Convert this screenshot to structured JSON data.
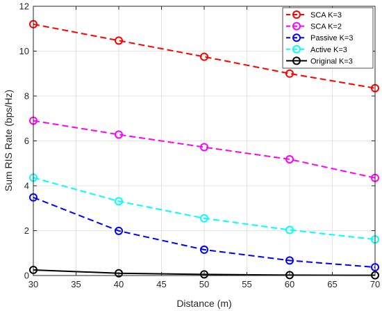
{
  "chart_data": {
    "type": "line",
    "title": "",
    "xlabel": "Distance (m)",
    "ylabel": "Sum RIS Rate (bps/Hz)",
    "x": [
      30,
      40,
      50,
      60,
      70
    ],
    "xlim": [
      30,
      70
    ],
    "ylim": [
      0,
      12
    ],
    "xticks": [
      30,
      35,
      40,
      45,
      50,
      55,
      60,
      65,
      70
    ],
    "yticks": [
      0,
      2,
      4,
      6,
      8,
      10,
      12
    ],
    "grid": true,
    "legend_position": "top-right",
    "series": [
      {
        "name": "SCA K=3",
        "values": [
          11.2,
          10.47,
          9.75,
          9.0,
          8.35
        ],
        "color": "#ff0000",
        "dash": "dashed",
        "marker": "circle"
      },
      {
        "name": "SCA K=2",
        "values": [
          6.9,
          6.28,
          5.72,
          5.18,
          4.35
        ],
        "color": "#ff00ff",
        "dash": "dashed",
        "marker": "circle"
      },
      {
        "name": "Passive K=3",
        "values": [
          3.48,
          1.99,
          1.15,
          0.67,
          0.37
        ],
        "color": "#0000ff",
        "dash": "dashed",
        "marker": "circle"
      },
      {
        "name": "Active K=3",
        "values": [
          4.36,
          3.31,
          2.55,
          2.03,
          1.61
        ],
        "color": "#00ffff",
        "dash": "dashed",
        "marker": "circle"
      },
      {
        "name": "Original K=3",
        "values": [
          0.25,
          0.1,
          0.05,
          0.02,
          0.01
        ],
        "color": "#000000",
        "dash": "solid",
        "marker": "circle"
      }
    ]
  }
}
